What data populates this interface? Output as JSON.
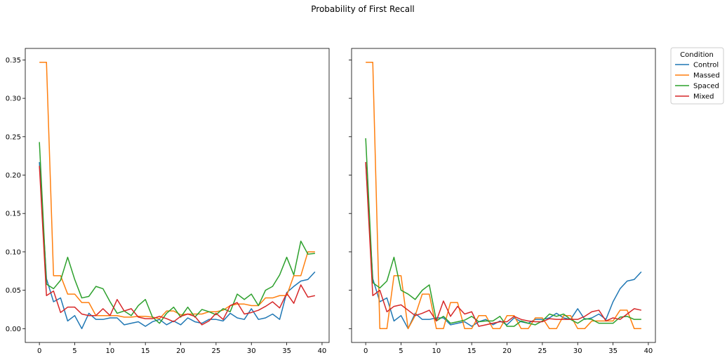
{
  "figure": {
    "title": "Probability of First Recall"
  },
  "legend": {
    "title": "Condition",
    "placement": "outside-right-top",
    "entries": [
      "Control",
      "Massed",
      "Spaced",
      "Mixed"
    ]
  },
  "colors": {
    "Control": "#1f77b4",
    "Massed": "#ff7f0e",
    "Spaced": "#2ca02c",
    "Mixed": "#d62728"
  },
  "chart_data": [
    {
      "type": "line",
      "xlim": [
        -2,
        41
      ],
      "ylim": [
        -0.018,
        0.365
      ],
      "xticks": [
        0,
        5,
        10,
        15,
        20,
        25,
        30,
        35,
        40
      ],
      "yticks": [
        0.0,
        0.05,
        0.1,
        0.15,
        0.2,
        0.25,
        0.3,
        0.35
      ],
      "ytick_labels": [
        "0.00",
        "0.05",
        "0.10",
        "0.15",
        "0.20",
        "0.25",
        "0.30",
        "0.35"
      ],
      "x": [
        0,
        1,
        2,
        3,
        4,
        5,
        6,
        7,
        8,
        9,
        10,
        11,
        12,
        13,
        14,
        15,
        16,
        17,
        18,
        19,
        20,
        21,
        22,
        23,
        24,
        25,
        26,
        27,
        28,
        29,
        30,
        31,
        32,
        33,
        34,
        35,
        36,
        37,
        38,
        39
      ],
      "series": [
        {
          "name": "Control",
          "values": [
            0.217,
            0.065,
            0.035,
            0.04,
            0.01,
            0.017,
            0.0,
            0.02,
            0.012,
            0.012,
            0.014,
            0.014,
            0.005,
            0.007,
            0.009,
            0.003,
            0.009,
            0.012,
            0.005,
            0.01,
            0.005,
            0.014,
            0.009,
            0.007,
            0.012,
            0.012,
            0.01,
            0.02,
            0.014,
            0.012,
            0.026,
            0.012,
            0.014,
            0.019,
            0.012,
            0.047,
            0.055,
            0.062,
            0.064,
            0.074
          ]
        },
        {
          "name": "Massed",
          "values": [
            0.347,
            0.347,
            0.069,
            0.069,
            0.045,
            0.045,
            0.034,
            0.034,
            0.017,
            0.017,
            0.017,
            0.017,
            0.015,
            0.015,
            0.016,
            0.016,
            0.015,
            0.013,
            0.023,
            0.023,
            0.018,
            0.019,
            0.019,
            0.019,
            0.022,
            0.022,
            0.024,
            0.03,
            0.032,
            0.032,
            0.03,
            0.03,
            0.04,
            0.04,
            0.043,
            0.043,
            0.069,
            0.069,
            0.1,
            0.1
          ]
        },
        {
          "name": "Spaced",
          "values": [
            0.243,
            0.058,
            0.052,
            0.063,
            0.093,
            0.064,
            0.04,
            0.042,
            0.055,
            0.052,
            0.035,
            0.02,
            0.023,
            0.017,
            0.03,
            0.038,
            0.015,
            0.007,
            0.02,
            0.028,
            0.015,
            0.028,
            0.015,
            0.025,
            0.022,
            0.018,
            0.026,
            0.022,
            0.045,
            0.038,
            0.045,
            0.03,
            0.05,
            0.055,
            0.07,
            0.093,
            0.07,
            0.114,
            0.097,
            0.098
          ]
        },
        {
          "name": "Mixed",
          "values": [
            0.212,
            0.043,
            0.049,
            0.021,
            0.028,
            0.028,
            0.019,
            0.017,
            0.017,
            0.026,
            0.017,
            0.038,
            0.023,
            0.026,
            0.015,
            0.013,
            0.013,
            0.016,
            0.013,
            0.009,
            0.016,
            0.019,
            0.016,
            0.005,
            0.01,
            0.02,
            0.012,
            0.03,
            0.034,
            0.019,
            0.021,
            0.024,
            0.029,
            0.035,
            0.027,
            0.046,
            0.033,
            0.057,
            0.041,
            0.043
          ]
        }
      ]
    },
    {
      "type": "line",
      "xlim": [
        -2,
        41
      ],
      "ylim": [
        -0.018,
        0.365
      ],
      "xticks": [
        0,
        5,
        10,
        15,
        20,
        25,
        30,
        35,
        40
      ],
      "yticks": [
        0.0,
        0.05,
        0.1,
        0.15,
        0.2,
        0.25,
        0.3,
        0.35
      ],
      "ytick_labels": [],
      "x": [
        0,
        1,
        2,
        3,
        4,
        5,
        6,
        7,
        8,
        9,
        10,
        11,
        12,
        13,
        14,
        15,
        16,
        17,
        18,
        19,
        20,
        21,
        22,
        23,
        24,
        25,
        26,
        27,
        28,
        29,
        30,
        31,
        32,
        33,
        34,
        35,
        36,
        37,
        38,
        39
      ],
      "series": [
        {
          "name": "Control",
          "values": [
            0.217,
            0.065,
            0.035,
            0.04,
            0.01,
            0.017,
            0.0,
            0.02,
            0.012,
            0.012,
            0.014,
            0.014,
            0.005,
            0.007,
            0.009,
            0.003,
            0.009,
            0.012,
            0.005,
            0.01,
            0.005,
            0.014,
            0.009,
            0.007,
            0.012,
            0.012,
            0.014,
            0.02,
            0.014,
            0.012,
            0.026,
            0.012,
            0.014,
            0.019,
            0.012,
            0.035,
            0.052,
            0.062,
            0.064,
            0.074
          ]
        },
        {
          "name": "Massed",
          "values": [
            0.347,
            0.347,
            0.0,
            0.0,
            0.069,
            0.069,
            0.0,
            0.017,
            0.045,
            0.045,
            0.0,
            0.0,
            0.034,
            0.034,
            0.0,
            0.0,
            0.017,
            0.017,
            0.0,
            0.0,
            0.017,
            0.017,
            0.0,
            0.0,
            0.014,
            0.014,
            0.0,
            0.0,
            0.017,
            0.017,
            0.0,
            0.0,
            0.01,
            0.01,
            0.01,
            0.01,
            0.024,
            0.024,
            0.0,
            0.0
          ]
        },
        {
          "name": "Spaced",
          "values": [
            0.248,
            0.06,
            0.053,
            0.062,
            0.093,
            0.05,
            0.045,
            0.038,
            0.05,
            0.057,
            0.01,
            0.016,
            0.007,
            0.009,
            0.011,
            0.016,
            0.009,
            0.01,
            0.01,
            0.016,
            0.003,
            0.003,
            0.01,
            0.007,
            0.005,
            0.01,
            0.019,
            0.016,
            0.019,
            0.012,
            0.007,
            0.013,
            0.012,
            0.007,
            0.007,
            0.007,
            0.015,
            0.016,
            0.012,
            0.012
          ]
        },
        {
          "name": "Mixed",
          "values": [
            0.217,
            0.043,
            0.05,
            0.022,
            0.029,
            0.031,
            0.024,
            0.017,
            0.02,
            0.024,
            0.01,
            0.036,
            0.016,
            0.029,
            0.019,
            0.022,
            0.003,
            0.005,
            0.007,
            0.009,
            0.009,
            0.016,
            0.012,
            0.01,
            0.009,
            0.009,
            0.013,
            0.012,
            0.012,
            0.012,
            0.012,
            0.016,
            0.022,
            0.024,
            0.01,
            0.014,
            0.012,
            0.019,
            0.026,
            0.024
          ]
        }
      ]
    }
  ]
}
